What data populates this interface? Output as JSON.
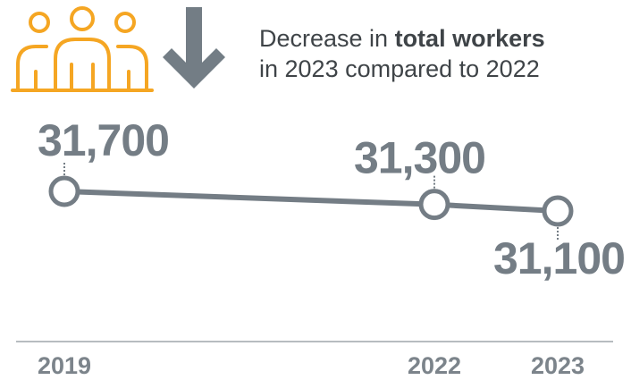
{
  "headline": {
    "line1_prefix": "Decrease in ",
    "line1_bold": "total workers",
    "line2": "in 2023 compared to 2022"
  },
  "icons": {
    "people": "people-group-icon",
    "trend": "arrow-down-icon"
  },
  "colors": {
    "icon_orange": "#f5a623",
    "arrow_gray": "#737d85",
    "line_gray": "#747d85",
    "label_gray": "#747d85",
    "axis_gray": "#b7bcc0"
  },
  "chart_data": {
    "type": "line",
    "title": "",
    "xlabel": "",
    "ylabel": "",
    "grid": false,
    "categories": [
      "2019",
      "2022",
      "2023"
    ],
    "series": [
      {
        "values": [
          31700,
          31300,
          31100
        ],
        "labels": [
          "31,700",
          "31,300",
          "31,100"
        ]
      }
    ]
  }
}
